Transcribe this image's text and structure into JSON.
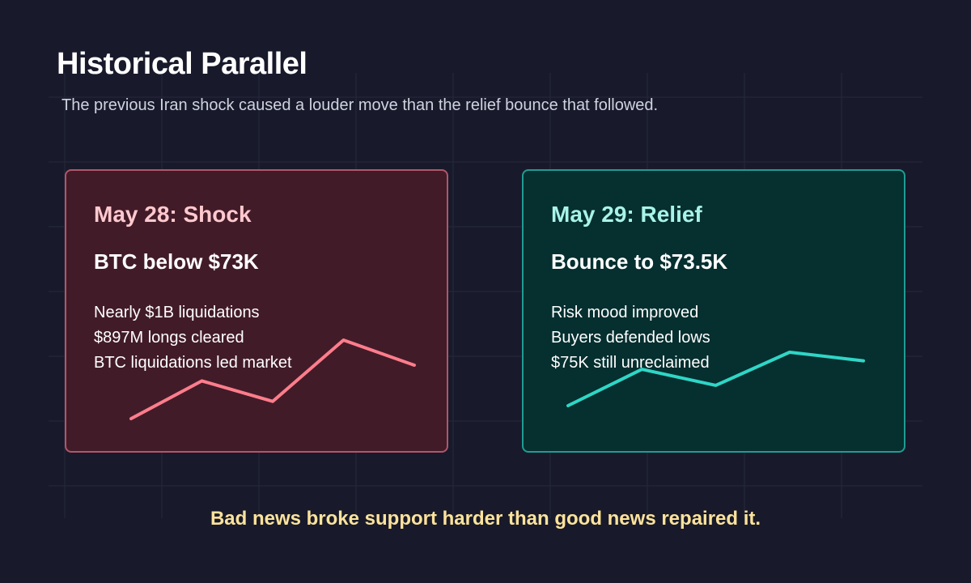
{
  "header": {
    "title": "Historical Parallel",
    "subtitle": "The previous Iran shock caused a louder move than the relief bounce that followed."
  },
  "cards": [
    {
      "heading": "May 28: Shock",
      "headline": "BTC below $73K",
      "points": [
        "Nearly $1B liquidations",
        "$897M longs cleared",
        "BTC liquidations led market"
      ],
      "sparkline_levels": [
        0.0,
        0.48,
        0.22,
        1.0,
        0.68
      ],
      "line_color": "#ff7d8c"
    },
    {
      "heading": "May 29: Relief",
      "headline": "Bounce to $73.5K",
      "points": [
        "Risk mood improved",
        "Buyers defended lows",
        "$75K still unreclaimed"
      ],
      "sparkline_levels": [
        0.0,
        0.68,
        0.38,
        1.0,
        0.84
      ],
      "line_color": "#2fd6c6"
    }
  ],
  "footer": {
    "text": "Bad news broke support harder than good news repaired it."
  }
}
